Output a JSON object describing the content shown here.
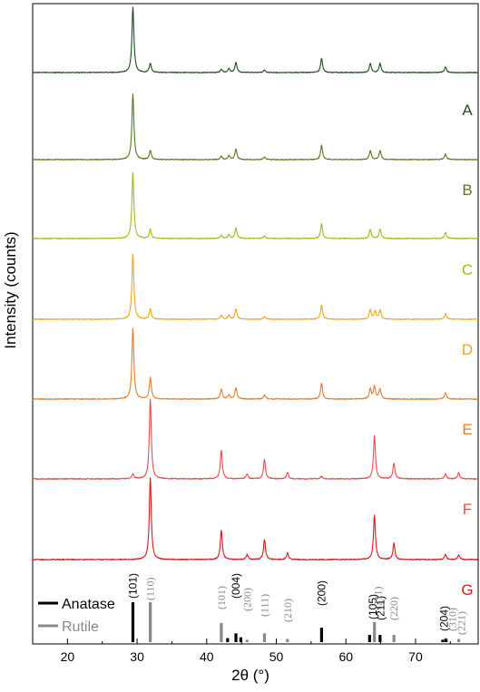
{
  "chart_data": {
    "type": "line",
    "xlabel": "2θ (°)",
    "ylabel": "Intensity (counts)",
    "xlim": [
      15,
      79
    ],
    "xticks": [
      20,
      30,
      40,
      50,
      60,
      70
    ],
    "series": [
      {
        "name": "A",
        "color": "#1f4d1f",
        "peaks": [
          [
            29.4,
            1.0
          ],
          [
            31.9,
            0.14
          ],
          [
            42.1,
            0.05
          ],
          [
            43.2,
            0.06
          ],
          [
            44.2,
            0.16
          ],
          [
            48.3,
            0.04
          ],
          [
            56.5,
            0.22
          ],
          [
            63.5,
            0.14
          ],
          [
            64.9,
            0.14
          ],
          [
            74.3,
            0.09
          ]
        ]
      },
      {
        "name": "B",
        "color": "#5a7a1c",
        "peaks": [
          [
            29.4,
            1.0
          ],
          [
            31.9,
            0.14
          ],
          [
            42.1,
            0.05
          ],
          [
            43.2,
            0.06
          ],
          [
            44.2,
            0.16
          ],
          [
            48.3,
            0.04
          ],
          [
            56.5,
            0.22
          ],
          [
            63.5,
            0.14
          ],
          [
            64.9,
            0.14
          ],
          [
            74.3,
            0.09
          ]
        ]
      },
      {
        "name": "C",
        "color": "#a6b61e",
        "peaks": [
          [
            29.4,
            1.0
          ],
          [
            31.9,
            0.14
          ],
          [
            42.1,
            0.05
          ],
          [
            43.2,
            0.06
          ],
          [
            44.2,
            0.16
          ],
          [
            48.3,
            0.04
          ],
          [
            56.5,
            0.22
          ],
          [
            63.5,
            0.14
          ],
          [
            64.9,
            0.14
          ],
          [
            74.3,
            0.09
          ]
        ]
      },
      {
        "name": "D",
        "color": "#f1a51d",
        "peaks": [
          [
            29.4,
            1.0
          ],
          [
            31.9,
            0.16
          ],
          [
            42.1,
            0.06
          ],
          [
            43.2,
            0.06
          ],
          [
            44.2,
            0.16
          ],
          [
            48.3,
            0.04
          ],
          [
            56.5,
            0.22
          ],
          [
            63.5,
            0.14
          ],
          [
            64.2,
            0.12
          ],
          [
            64.9,
            0.14
          ],
          [
            74.3,
            0.09
          ]
        ]
      },
      {
        "name": "E",
        "color": "#ee7a24",
        "peaks": [
          [
            29.4,
            1.0
          ],
          [
            31.9,
            0.3
          ],
          [
            42.1,
            0.14
          ],
          [
            43.2,
            0.06
          ],
          [
            44.2,
            0.16
          ],
          [
            48.3,
            0.06
          ],
          [
            56.5,
            0.22
          ],
          [
            63.5,
            0.14
          ],
          [
            64.1,
            0.18
          ],
          [
            64.9,
            0.14
          ],
          [
            74.3,
            0.09
          ]
        ]
      },
      {
        "name": "F",
        "color": "#ef4a4a",
        "peaks": [
          [
            29.4,
            0.06
          ],
          [
            31.9,
            1.0
          ],
          [
            42.1,
            0.36
          ],
          [
            45.8,
            0.06
          ],
          [
            48.3,
            0.24
          ],
          [
            51.6,
            0.08
          ],
          [
            56.5,
            0.03
          ],
          [
            64.1,
            0.54
          ],
          [
            66.9,
            0.2
          ],
          [
            74.3,
            0.06
          ],
          [
            76.2,
            0.08
          ]
        ]
      },
      {
        "name": "G",
        "color": "#e8141c",
        "peaks": [
          [
            31.9,
            1.0
          ],
          [
            42.1,
            0.36
          ],
          [
            45.8,
            0.06
          ],
          [
            48.3,
            0.24
          ],
          [
            51.6,
            0.08
          ],
          [
            64.1,
            0.54
          ],
          [
            66.9,
            0.2
          ],
          [
            74.3,
            0.06
          ],
          [
            76.2,
            0.06
          ]
        ]
      }
    ],
    "reference_patterns": [
      {
        "name": "Anatase",
        "color": "#000000",
        "sticks": [
          [
            29.4,
            1.0
          ],
          [
            43.0,
            0.1
          ],
          [
            44.2,
            0.22
          ],
          [
            44.9,
            0.12
          ],
          [
            56.5,
            0.36
          ],
          [
            63.4,
            0.18
          ],
          [
            64.9,
            0.18
          ],
          [
            73.9,
            0.06
          ],
          [
            74.4,
            0.08
          ]
        ],
        "hkl": [
          {
            "x": 29.4,
            "label": "(101)"
          },
          {
            "x": 44.2,
            "label": "(004)"
          },
          {
            "x": 56.5,
            "label": "(200)"
          },
          {
            "x": 63.9,
            "label": "(105)"
          },
          {
            "x": 65.0,
            "label": "(211)"
          },
          {
            "x": 74.1,
            "label": "(204)"
          }
        ]
      },
      {
        "name": "Rutile",
        "color": "#888888",
        "sticks": [
          [
            31.9,
            1.0
          ],
          [
            42.1,
            0.48
          ],
          [
            45.8,
            0.06
          ],
          [
            48.3,
            0.22
          ],
          [
            51.6,
            0.08
          ],
          [
            64.1,
            0.5
          ],
          [
            66.9,
            0.18
          ],
          [
            74.3,
            0.1
          ],
          [
            76.2,
            0.08
          ]
        ],
        "hkl": [
          {
            "x": 31.9,
            "label": "(110)"
          },
          {
            "x": 42.1,
            "label": "(101)"
          },
          {
            "x": 45.8,
            "label": "(200)"
          },
          {
            "x": 48.3,
            "label": "(111)"
          },
          {
            "x": 51.6,
            "label": "(210)"
          },
          {
            "x": 64.6,
            "label": "(211)"
          },
          {
            "x": 66.9,
            "label": "(220)"
          },
          {
            "x": 75.3,
            "label": "(310)"
          },
          {
            "x": 76.6,
            "label": "(221)"
          }
        ]
      }
    ]
  }
}
